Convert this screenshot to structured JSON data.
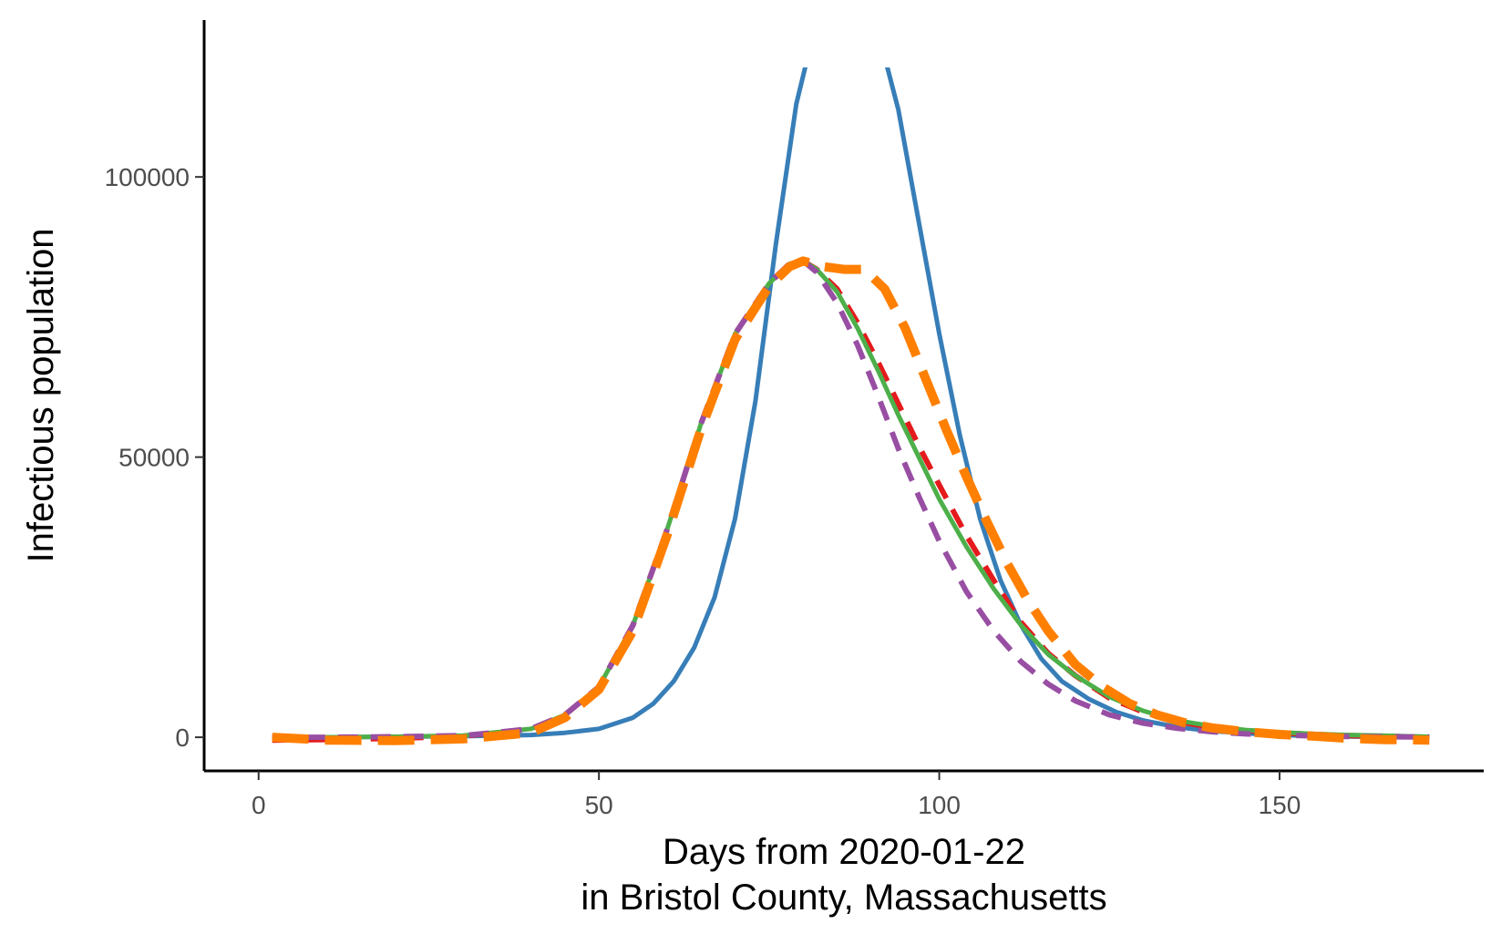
{
  "chart_data": {
    "type": "line",
    "xlabel_line1": "Days from 2020-01-22",
    "xlabel_line2": "in Bristol County, Massachusetts",
    "ylabel": "Infectious population",
    "xlim": [
      -8,
      180
    ],
    "ylim": [
      -6000,
      128000
    ],
    "x_ticks": [
      0,
      50,
      100,
      150
    ],
    "x_tick_labels": [
      "0",
      "50",
      "100",
      "150"
    ],
    "y_ticks": [
      0,
      50000,
      100000
    ],
    "y_tick_labels": [
      "0",
      "50000",
      "100000"
    ],
    "grid": false,
    "legend": "none",
    "series": [
      {
        "color": "#377eb8",
        "style": "solid",
        "x": [
          2,
          10,
          20,
          30,
          40,
          45,
          50,
          55,
          58,
          61,
          64,
          67,
          70,
          73,
          76,
          79,
          82,
          85,
          88,
          91,
          94,
          97,
          100,
          103,
          106,
          109,
          112,
          115,
          118,
          122,
          126,
          130,
          135,
          140,
          145,
          150,
          155,
          160,
          165,
          172
        ],
        "y": [
          0,
          0,
          100,
          200,
          400,
          800,
          1500,
          3500,
          6000,
          10000,
          16000,
          25000,
          39000,
          60000,
          88000,
          113000,
          128000,
          128000,
          128000,
          126000,
          112000,
          92000,
          72000,
          54000,
          39000,
          28000,
          20000,
          14000,
          10000,
          6800,
          4500,
          3000,
          1800,
          1100,
          700,
          400,
          250,
          150,
          80,
          30
        ]
      },
      {
        "color": "#e41a1c",
        "style": "dashed",
        "x": [
          2,
          10,
          20,
          30,
          40,
          45,
          50,
          55,
          60,
          65,
          70,
          75,
          78,
          80,
          82,
          85,
          88,
          91,
          94,
          97,
          100,
          104,
          108,
          112,
          116,
          120,
          125,
          130,
          135,
          140,
          145,
          150,
          155,
          160,
          165,
          172
        ],
        "y": [
          -500,
          -400,
          -200,
          200,
          1500,
          4000,
          9000,
          20000,
          37000,
          56000,
          72000,
          81000,
          84500,
          85000,
          83500,
          80000,
          74000,
          67000,
          59500,
          52000,
          45000,
          36000,
          28000,
          20500,
          15000,
          11000,
          7000,
          4500,
          2800,
          1800,
          1200,
          800,
          500,
          300,
          200,
          0
        ]
      },
      {
        "color": "#4daf4a",
        "style": "solid",
        "x": [
          2,
          10,
          20,
          30,
          40,
          45,
          50,
          55,
          60,
          65,
          70,
          75,
          78,
          80,
          82,
          85,
          88,
          91,
          94,
          97,
          100,
          104,
          108,
          112,
          116,
          120,
          125,
          130,
          135,
          140,
          145,
          150,
          155,
          160,
          165,
          172
        ],
        "y": [
          0,
          0,
          100,
          300,
          1500,
          4000,
          9000,
          20000,
          37000,
          56000,
          72000,
          81000,
          84500,
          85000,
          83500,
          79500,
          73000,
          65500,
          57500,
          50000,
          42500,
          34000,
          26500,
          20000,
          14800,
          11000,
          7200,
          4700,
          3000,
          2000,
          1300,
          900,
          600,
          400,
          300,
          100
        ]
      },
      {
        "color": "#984ea3",
        "style": "dashed",
        "x": [
          2,
          10,
          20,
          30,
          40,
          45,
          50,
          55,
          60,
          65,
          70,
          75,
          78,
          80,
          82,
          85,
          88,
          91,
          94,
          97,
          100,
          104,
          108,
          112,
          116,
          120,
          125,
          130,
          135,
          140,
          145,
          150,
          155,
          160,
          165,
          172
        ],
        "y": [
          0,
          0,
          100,
          300,
          1500,
          4000,
          9000,
          20000,
          37000,
          56000,
          72000,
          81000,
          84500,
          85000,
          83000,
          77500,
          70000,
          61000,
          51500,
          43000,
          35000,
          26000,
          19000,
          13500,
          9500,
          6500,
          4000,
          2500,
          1600,
          1000,
          600,
          400,
          250,
          150,
          100,
          50
        ]
      },
      {
        "color": "#ff7f00",
        "style": "longdash",
        "x": [
          2,
          10,
          20,
          30,
          40,
          45,
          50,
          55,
          60,
          65,
          70,
          75,
          78,
          80,
          83,
          86,
          89,
          92,
          95,
          98,
          101,
          104,
          107,
          110,
          113,
          116,
          120,
          124,
          128,
          132,
          136,
          140,
          145,
          150,
          155,
          160,
          165,
          172
        ],
        "y": [
          0,
          -500,
          -600,
          -300,
          800,
          3500,
          8500,
          19000,
          36000,
          55000,
          71000,
          80500,
          84000,
          85000,
          84000,
          83500,
          83500,
          80000,
          73000,
          64000,
          55000,
          46500,
          38500,
          31000,
          24500,
          19000,
          13000,
          9000,
          6000,
          4000,
          2600,
          1700,
          1000,
          500,
          200,
          -200,
          -400,
          -500
        ]
      }
    ]
  }
}
